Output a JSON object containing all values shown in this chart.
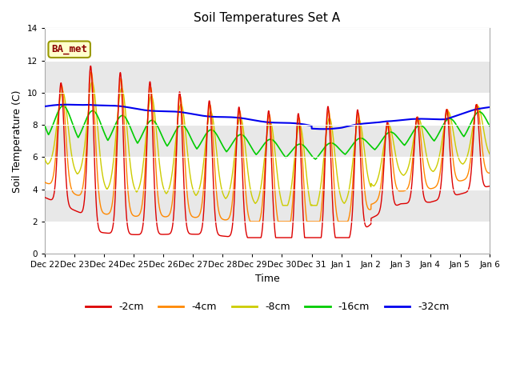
{
  "title": "Soil Temperatures Set A",
  "xlabel": "Time",
  "ylabel": "Soil Temperature (C)",
  "annotation": "BA_met",
  "ylim": [
    0,
    14
  ],
  "yticks": [
    0,
    2,
    4,
    6,
    8,
    10,
    12,
    14
  ],
  "colors": {
    "-2cm": "#dd0000",
    "-4cm": "#ff8800",
    "-8cm": "#cccc00",
    "-16cm": "#00cc00",
    "-32cm": "#0000ee"
  },
  "legend_labels": [
    "-2cm",
    "-4cm",
    "-8cm",
    "-16cm",
    "-32cm"
  ],
  "bg_color": "#e8e8e8"
}
